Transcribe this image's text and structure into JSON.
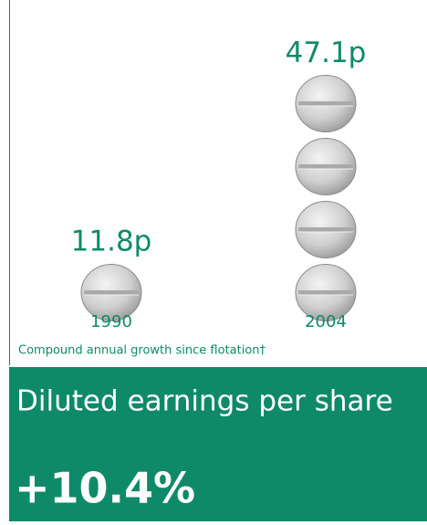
{
  "chart_data": {
    "type": "pictogram",
    "categories": [
      "1990",
      "2004"
    ],
    "values": [
      11.8,
      47.1
    ],
    "value_labels": [
      "11.8p",
      "47.1p"
    ],
    "color": "#0e8a68"
  },
  "footnote": "Compound annual growth since flotation†",
  "headline": "Diluted earnings per share",
  "growth": "+10.4%"
}
